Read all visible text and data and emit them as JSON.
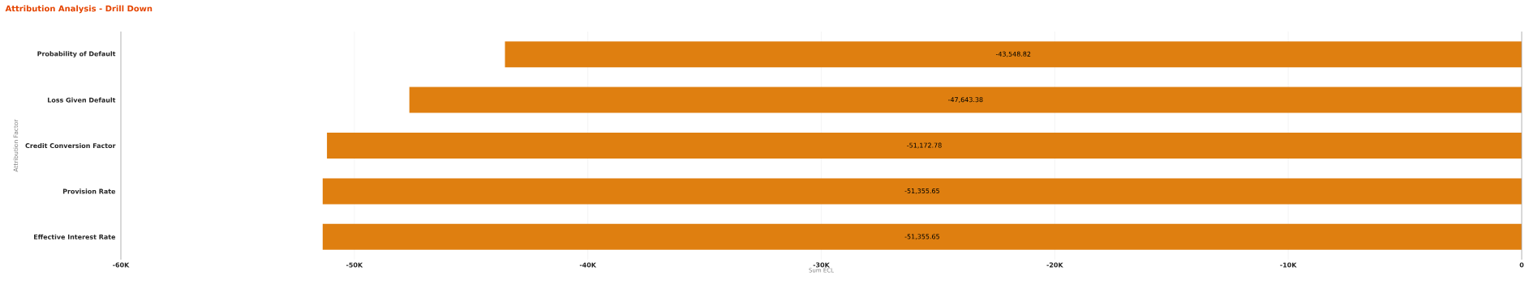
{
  "chart_data": {
    "type": "bar",
    "orientation": "horizontal",
    "title": "Attribution Analysis - Drill Down",
    "xlabel": "Sum ECL",
    "ylabel": "Attribution Factor",
    "categories": [
      "Probability of Default",
      "Loss Given Default",
      "Credit Conversion Factor",
      "Provision Rate",
      "Effective Interest Rate"
    ],
    "values": [
      -43548.82,
      -47643.38,
      -51172.78,
      -51355.65,
      -51355.65
    ],
    "value_labels": [
      "-43,548.82",
      "-47,643.38",
      "-51,172.78",
      "-51,355.65",
      "-51,355.65"
    ],
    "color": "#df7f10",
    "xlim": [
      -60000,
      0
    ],
    "xticks": [
      {
        "value": -60000,
        "label": "-60K"
      },
      {
        "value": -50000,
        "label": "-50K"
      },
      {
        "value": -40000,
        "label": "-40K"
      },
      {
        "value": -30000,
        "label": "-30K"
      },
      {
        "value": -20000,
        "label": "-20K"
      },
      {
        "value": -10000,
        "label": "-10K"
      },
      0
    ],
    "grid": "x"
  }
}
